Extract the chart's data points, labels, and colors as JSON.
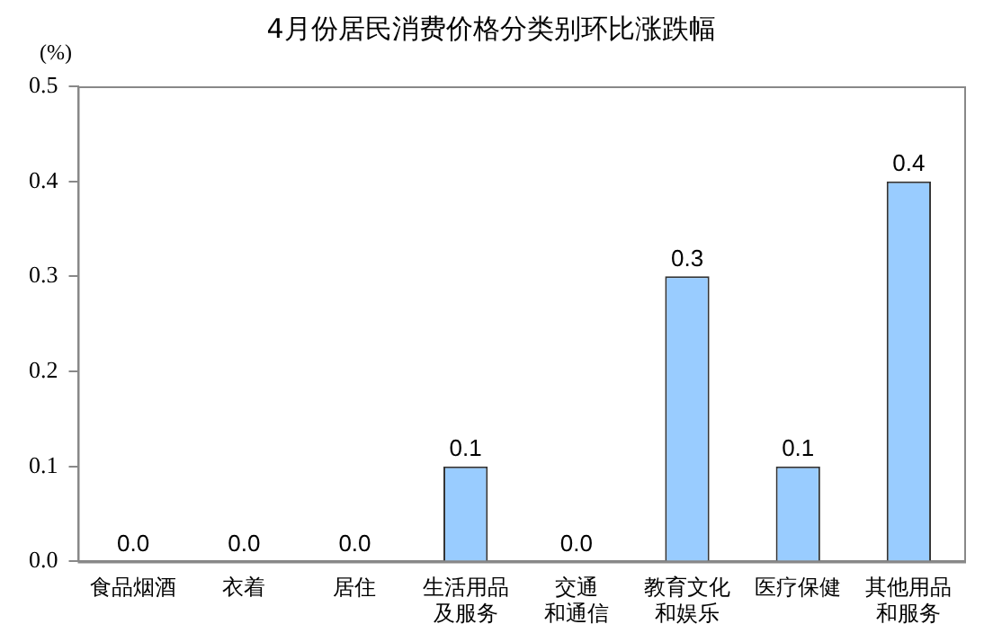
{
  "chart_data": {
    "type": "bar",
    "title": "4月份居民消费价格分类别环比涨跌幅",
    "ylabel": "(%)",
    "categories": [
      "食品烟酒",
      "衣着",
      "居住",
      "生活用品及服务",
      "交通和通信",
      "教育文化和娱乐",
      "医疗保健",
      "其他用品和服务"
    ],
    "values": [
      0,
      0,
      0,
      0.1,
      0,
      0.3,
      0.1,
      0.4
    ],
    "value_labels": [
      "0.0",
      "0.0",
      "0.0",
      "0.1",
      "0.0",
      "0.3",
      "0.1",
      "0.4"
    ],
    "color": "#99ccff",
    "ylim": [
      0,
      0.5
    ],
    "yticks": [
      {
        "value": 0,
        "label": "0.0"
      },
      {
        "value": 0.1,
        "label": "0.1"
      },
      {
        "value": 0.2,
        "label": "0.2"
      },
      {
        "value": 0.3,
        "label": "0.3"
      },
      {
        "value": 0.4,
        "label": "0.4"
      },
      {
        "value": 0.5,
        "label": "0.5"
      }
    ],
    "grid": false,
    "legend": false
  }
}
